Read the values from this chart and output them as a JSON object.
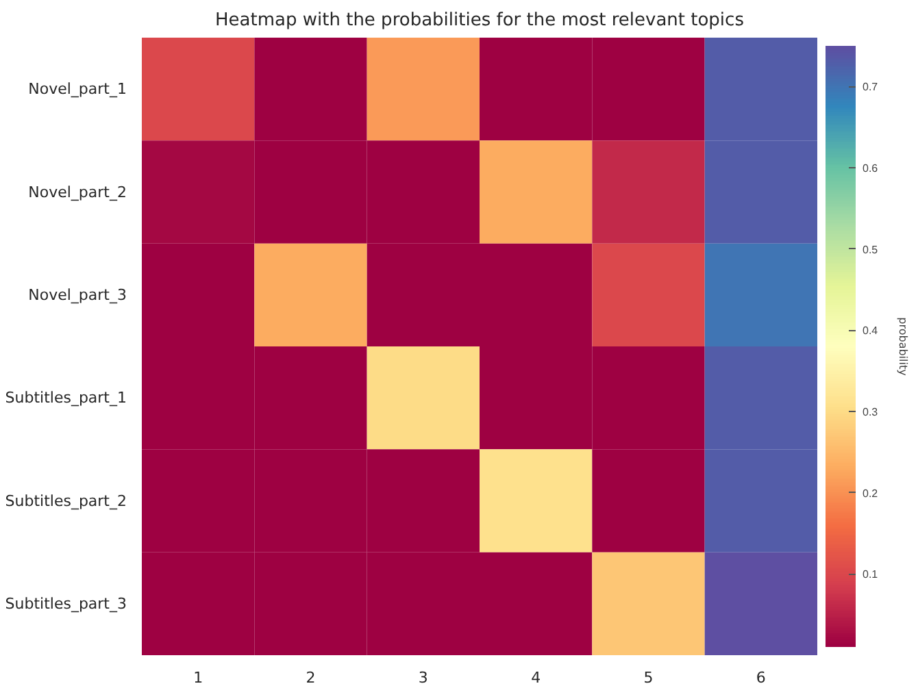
{
  "chart_data": {
    "type": "heatmap",
    "title": "Heatmap with the probabilities for the most relevant topics",
    "clabel": "probability",
    "categories": [
      "1",
      "2",
      "3",
      "4",
      "5",
      "6"
    ],
    "y_categories": [
      "Novel_part_1",
      "Novel_part_2",
      "Novel_part_3",
      "Subtitles_part_1",
      "Subtitles_part_2",
      "Subtitles_part_3"
    ],
    "cells": [
      [
        0.1,
        0.01,
        0.21,
        0.01,
        0.01,
        0.73
      ],
      [
        0.02,
        0.01,
        0.01,
        0.23,
        0.06,
        0.73
      ],
      [
        0.01,
        0.23,
        0.01,
        0.01,
        0.1,
        0.7
      ],
      [
        0.01,
        0.01,
        0.3,
        0.01,
        0.01,
        0.73
      ],
      [
        0.01,
        0.01,
        0.01,
        0.31,
        0.01,
        0.73
      ],
      [
        0.01,
        0.01,
        0.01,
        0.01,
        0.27,
        0.75
      ]
    ],
    "clim": [
      0.01,
      0.75
    ],
    "cticks": [
      0.1,
      0.2,
      0.3,
      0.4,
      0.5,
      0.6,
      0.7
    ]
  }
}
